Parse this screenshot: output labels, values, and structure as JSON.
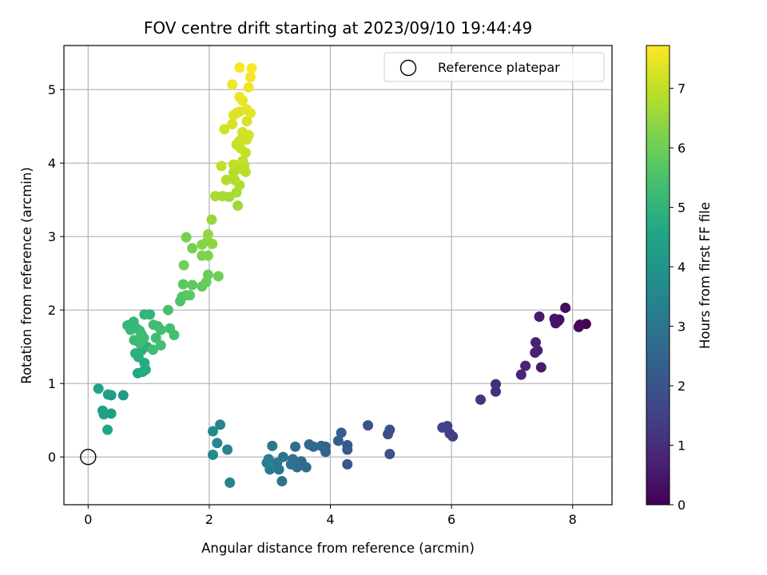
{
  "chart_data": {
    "type": "scatter",
    "title": "FOV centre drift starting at 2023/09/10 19:44:49",
    "xlabel": "Angular distance from reference (arcmin)",
    "ylabel": "Rotation from reference (arcmin)",
    "xlim": [
      -0.4,
      8.65
    ],
    "ylim": [
      -0.65,
      5.6
    ],
    "xticks": [
      0,
      2,
      4,
      6,
      8
    ],
    "yticks": [
      0,
      1,
      2,
      3,
      4,
      5
    ],
    "grid": true,
    "legend": {
      "placement": "top-right",
      "entries": [
        "Reference platepar"
      ]
    },
    "reference_point": {
      "x": 0,
      "y": 0
    },
    "colorbar": {
      "label": "Hours from first FF file",
      "range": [
        0,
        7.72
      ],
      "ticks": [
        0,
        1,
        2,
        3,
        4,
        5,
        6,
        7
      ],
      "colormap": "viridis"
    },
    "points": [
      {
        "x": 8.22,
        "y": 1.81,
        "c": 0.05
      },
      {
        "x": 8.12,
        "y": 1.8,
        "c": 0.1
      },
      {
        "x": 8.1,
        "y": 1.77,
        "c": 0.15
      },
      {
        "x": 7.88,
        "y": 2.03,
        "c": 0.25
      },
      {
        "x": 7.78,
        "y": 1.87,
        "c": 0.3
      },
      {
        "x": 7.76,
        "y": 1.85,
        "c": 0.35
      },
      {
        "x": 7.72,
        "y": 1.82,
        "c": 0.4
      },
      {
        "x": 7.7,
        "y": 1.88,
        "c": 0.45
      },
      {
        "x": 7.45,
        "y": 1.91,
        "c": 0.55
      },
      {
        "x": 7.48,
        "y": 1.22,
        "c": 0.6
      },
      {
        "x": 7.42,
        "y": 1.45,
        "c": 0.65
      },
      {
        "x": 7.39,
        "y": 1.56,
        "c": 0.7
      },
      {
        "x": 7.38,
        "y": 1.42,
        "c": 0.75
      },
      {
        "x": 7.22,
        "y": 1.24,
        "c": 0.8
      },
      {
        "x": 7.15,
        "y": 1.12,
        "c": 0.85
      },
      {
        "x": 6.73,
        "y": 0.99,
        "c": 1.0
      },
      {
        "x": 6.73,
        "y": 0.89,
        "c": 1.05
      },
      {
        "x": 6.48,
        "y": 0.78,
        "c": 1.15
      },
      {
        "x": 6.02,
        "y": 0.28,
        "c": 1.4
      },
      {
        "x": 5.97,
        "y": 0.32,
        "c": 1.45
      },
      {
        "x": 5.93,
        "y": 0.42,
        "c": 1.5
      },
      {
        "x": 5.85,
        "y": 0.4,
        "c": 1.55
      },
      {
        "x": 4.98,
        "y": 0.37,
        "c": 1.85
      },
      {
        "x": 4.95,
        "y": 0.31,
        "c": 1.9
      },
      {
        "x": 4.98,
        "y": 0.04,
        "c": 1.95
      },
      {
        "x": 4.62,
        "y": 0.43,
        "c": 2.0
      },
      {
        "x": 4.28,
        "y": -0.1,
        "c": 2.1
      },
      {
        "x": 4.28,
        "y": 0.16,
        "c": 2.15
      },
      {
        "x": 4.28,
        "y": 0.1,
        "c": 2.2
      },
      {
        "x": 4.18,
        "y": 0.33,
        "c": 2.25
      },
      {
        "x": 4.13,
        "y": 0.22,
        "c": 2.3
      },
      {
        "x": 3.92,
        "y": 0.07,
        "c": 2.4
      },
      {
        "x": 3.92,
        "y": 0.14,
        "c": 2.45
      },
      {
        "x": 3.85,
        "y": 0.15,
        "c": 2.5
      },
      {
        "x": 3.72,
        "y": 0.14,
        "c": 2.55
      },
      {
        "x": 3.65,
        "y": 0.17,
        "c": 2.6
      },
      {
        "x": 3.6,
        "y": -0.14,
        "c": 2.65
      },
      {
        "x": 3.52,
        "y": -0.06,
        "c": 2.7
      },
      {
        "x": 3.45,
        "y": -0.14,
        "c": 2.75
      },
      {
        "x": 3.42,
        "y": 0.14,
        "c": 2.8
      },
      {
        "x": 3.38,
        "y": -0.03,
        "c": 2.85
      },
      {
        "x": 3.35,
        "y": -0.1,
        "c": 2.9
      },
      {
        "x": 3.2,
        "y": -0.33,
        "c": 2.95
      },
      {
        "x": 3.22,
        "y": 0.0,
        "c": 3.0
      },
      {
        "x": 3.15,
        "y": -0.17,
        "c": 3.05
      },
      {
        "x": 3.12,
        "y": -0.08,
        "c": 3.1
      },
      {
        "x": 3.04,
        "y": 0.15,
        "c": 3.15
      },
      {
        "x": 3.0,
        "y": -0.17,
        "c": 3.2
      },
      {
        "x": 2.98,
        "y": -0.03,
        "c": 3.25
      },
      {
        "x": 2.95,
        "y": -0.08,
        "c": 3.3
      },
      {
        "x": 2.34,
        "y": -0.35,
        "c": 3.4
      },
      {
        "x": 2.3,
        "y": 0.1,
        "c": 3.45
      },
      {
        "x": 2.18,
        "y": 0.44,
        "c": 3.5
      },
      {
        "x": 2.13,
        "y": 0.19,
        "c": 3.55
      },
      {
        "x": 2.06,
        "y": 0.35,
        "c": 3.6
      },
      {
        "x": 2.06,
        "y": 0.03,
        "c": 3.65
      },
      {
        "x": 0.58,
        "y": 0.84,
        "c": 4.15
      },
      {
        "x": 0.38,
        "y": 0.84,
        "c": 4.2
      },
      {
        "x": 0.33,
        "y": 0.85,
        "c": 4.25
      },
      {
        "x": 0.38,
        "y": 0.59,
        "c": 4.3
      },
      {
        "x": 0.26,
        "y": 0.58,
        "c": 4.35
      },
      {
        "x": 0.24,
        "y": 0.63,
        "c": 4.4
      },
      {
        "x": 0.32,
        "y": 0.37,
        "c": 4.45
      },
      {
        "x": 0.17,
        "y": 0.93,
        "c": 4.5
      },
      {
        "x": 0.82,
        "y": 1.14,
        "c": 4.6
      },
      {
        "x": 0.9,
        "y": 1.16,
        "c": 4.65
      },
      {
        "x": 0.95,
        "y": 1.19,
        "c": 4.7
      },
      {
        "x": 0.93,
        "y": 1.28,
        "c": 4.75
      },
      {
        "x": 0.83,
        "y": 1.36,
        "c": 4.8
      },
      {
        "x": 0.88,
        "y": 1.45,
        "c": 4.85
      },
      {
        "x": 0.78,
        "y": 1.41,
        "c": 4.9
      },
      {
        "x": 0.97,
        "y": 1.5,
        "c": 4.95
      },
      {
        "x": 1.02,
        "y": 1.94,
        "c": 5.0
      },
      {
        "x": 0.93,
        "y": 1.94,
        "c": 5.05
      },
      {
        "x": 0.75,
        "y": 1.84,
        "c": 5.1
      },
      {
        "x": 0.65,
        "y": 1.79,
        "c": 5.12
      },
      {
        "x": 0.7,
        "y": 1.73,
        "c": 5.14
      },
      {
        "x": 0.8,
        "y": 1.75,
        "c": 5.16
      },
      {
        "x": 0.85,
        "y": 1.72,
        "c": 5.18
      },
      {
        "x": 0.88,
        "y": 1.67,
        "c": 5.2
      },
      {
        "x": 0.76,
        "y": 1.59,
        "c": 5.22
      },
      {
        "x": 0.85,
        "y": 1.55,
        "c": 5.24
      },
      {
        "x": 0.92,
        "y": 1.62,
        "c": 5.26
      },
      {
        "x": 1.07,
        "y": 1.46,
        "c": 5.28
      },
      {
        "x": 1.12,
        "y": 1.62,
        "c": 5.3
      },
      {
        "x": 1.15,
        "y": 1.78,
        "c": 5.32
      },
      {
        "x": 1.08,
        "y": 1.8,
        "c": 5.34
      },
      {
        "x": 1.2,
        "y": 1.73,
        "c": 5.36
      },
      {
        "x": 1.2,
        "y": 1.52,
        "c": 5.38
      },
      {
        "x": 1.35,
        "y": 1.75,
        "c": 5.4
      },
      {
        "x": 1.42,
        "y": 1.66,
        "c": 5.42
      },
      {
        "x": 1.32,
        "y": 2.0,
        "c": 5.45
      },
      {
        "x": 1.52,
        "y": 2.12,
        "c": 5.55
      },
      {
        "x": 1.55,
        "y": 2.18,
        "c": 5.6
      },
      {
        "x": 1.62,
        "y": 2.2,
        "c": 5.65
      },
      {
        "x": 1.57,
        "y": 2.35,
        "c": 5.7
      },
      {
        "x": 1.68,
        "y": 2.2,
        "c": 5.75
      },
      {
        "x": 1.72,
        "y": 2.34,
        "c": 5.8
      },
      {
        "x": 1.88,
        "y": 2.32,
        "c": 5.85
      },
      {
        "x": 1.95,
        "y": 2.38,
        "c": 5.9
      },
      {
        "x": 1.98,
        "y": 2.48,
        "c": 5.95
      },
      {
        "x": 2.15,
        "y": 2.46,
        "c": 6.0
      },
      {
        "x": 1.58,
        "y": 2.61,
        "c": 6.05
      },
      {
        "x": 1.72,
        "y": 2.84,
        "c": 6.1
      },
      {
        "x": 1.62,
        "y": 2.99,
        "c": 6.15
      },
      {
        "x": 1.88,
        "y": 2.74,
        "c": 6.2
      },
      {
        "x": 1.98,
        "y": 2.74,
        "c": 6.25
      },
      {
        "x": 1.88,
        "y": 2.89,
        "c": 6.3
      },
      {
        "x": 1.97,
        "y": 2.94,
        "c": 6.35
      },
      {
        "x": 2.05,
        "y": 2.9,
        "c": 6.4
      },
      {
        "x": 1.98,
        "y": 3.03,
        "c": 6.45
      },
      {
        "x": 2.04,
        "y": 3.23,
        "c": 6.5
      },
      {
        "x": 2.47,
        "y": 3.42,
        "c": 6.6
      },
      {
        "x": 2.33,
        "y": 3.54,
        "c": 6.65
      },
      {
        "x": 2.22,
        "y": 3.55,
        "c": 6.7
      },
      {
        "x": 2.1,
        "y": 3.55,
        "c": 6.72
      },
      {
        "x": 2.45,
        "y": 3.6,
        "c": 6.75
      },
      {
        "x": 2.5,
        "y": 3.7,
        "c": 6.78
      },
      {
        "x": 2.42,
        "y": 3.77,
        "c": 6.8
      },
      {
        "x": 2.28,
        "y": 3.77,
        "c": 6.82
      },
      {
        "x": 2.4,
        "y": 3.87,
        "c": 6.85
      },
      {
        "x": 2.52,
        "y": 3.92,
        "c": 6.88
      },
      {
        "x": 2.6,
        "y": 3.88,
        "c": 6.9
      },
      {
        "x": 2.58,
        "y": 3.97,
        "c": 6.92
      },
      {
        "x": 2.4,
        "y": 3.98,
        "c": 6.95
      },
      {
        "x": 2.2,
        "y": 3.96,
        "c": 6.98
      },
      {
        "x": 2.55,
        "y": 4.03,
        "c": 7.0
      },
      {
        "x": 2.6,
        "y": 4.14,
        "c": 7.02
      },
      {
        "x": 2.52,
        "y": 4.2,
        "c": 7.05
      },
      {
        "x": 2.45,
        "y": 4.25,
        "c": 7.08
      },
      {
        "x": 2.5,
        "y": 4.3,
        "c": 7.1
      },
      {
        "x": 2.55,
        "y": 4.35,
        "c": 7.12
      },
      {
        "x": 2.62,
        "y": 4.32,
        "c": 7.15
      },
      {
        "x": 2.55,
        "y": 4.42,
        "c": 7.18
      },
      {
        "x": 2.65,
        "y": 4.38,
        "c": 7.2
      },
      {
        "x": 2.25,
        "y": 4.46,
        "c": 7.22
      },
      {
        "x": 2.38,
        "y": 4.53,
        "c": 7.25
      },
      {
        "x": 2.62,
        "y": 4.57,
        "c": 7.28
      },
      {
        "x": 2.45,
        "y": 4.68,
        "c": 7.3
      },
      {
        "x": 2.5,
        "y": 4.7,
        "c": 7.32
      },
      {
        "x": 2.4,
        "y": 4.65,
        "c": 7.35
      },
      {
        "x": 2.62,
        "y": 4.73,
        "c": 7.38
      },
      {
        "x": 2.68,
        "y": 4.68,
        "c": 7.4
      },
      {
        "x": 2.55,
        "y": 4.85,
        "c": 7.45
      },
      {
        "x": 2.5,
        "y": 4.9,
        "c": 7.5
      },
      {
        "x": 2.65,
        "y": 5.03,
        "c": 7.55
      },
      {
        "x": 2.38,
        "y": 5.07,
        "c": 7.58
      },
      {
        "x": 2.68,
        "y": 5.17,
        "c": 7.62
      },
      {
        "x": 2.5,
        "y": 5.3,
        "c": 7.66
      },
      {
        "x": 2.7,
        "y": 5.29,
        "c": 7.7
      }
    ]
  }
}
